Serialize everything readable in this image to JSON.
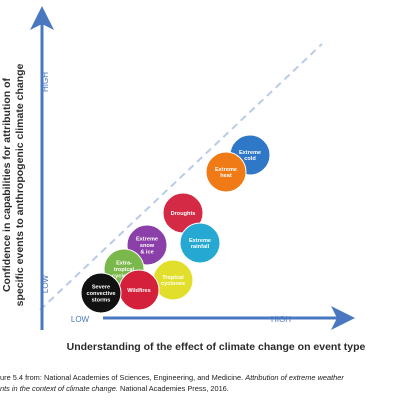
{
  "axis_y": {
    "label_lines": [
      "Confidence in capabilities for attribution of",
      "specific events to anthropogenic climate change"
    ],
    "high": "HIGH",
    "low": "LOW"
  },
  "axis_x": {
    "label": "Understanding of the effect of climate change on event type",
    "low": "LOW",
    "high": "HIGH"
  },
  "nodes": [
    {
      "lines": [
        "Extreme",
        "cold"
      ],
      "color": "#2f78c8"
    },
    {
      "lines": [
        "Extreme",
        "heat"
      ],
      "color": "#f07a16"
    },
    {
      "lines": [
        "Droughts"
      ],
      "color": "#d42a45"
    },
    {
      "lines": [
        "Extreme",
        "rainfall"
      ],
      "color": "#25a9d2"
    },
    {
      "lines": [
        "Extreme",
        "snow",
        "& ice"
      ],
      "color": "#8b40a9"
    },
    {
      "lines": [
        "Tropical",
        "cyclones"
      ],
      "color": "#e2df2c"
    },
    {
      "lines": [
        "Extra-",
        "tropical",
        "cyclones"
      ],
      "color": "#7ab84b"
    },
    {
      "lines": [
        "Wildfires"
      ],
      "color": "#d4203b"
    },
    {
      "lines": [
        "Severe",
        "convective",
        "storms"
      ],
      "color": "#111111"
    }
  ],
  "caption": {
    "line1": "ure 5.4 from: National Academies of Sciences, Engineering, and Medicine. ",
    "line1_italic": "Attribution of extreme weather",
    "line2_italic": "nts in the context of climate change.",
    "line2": " National Academies Press, 2016."
  }
}
